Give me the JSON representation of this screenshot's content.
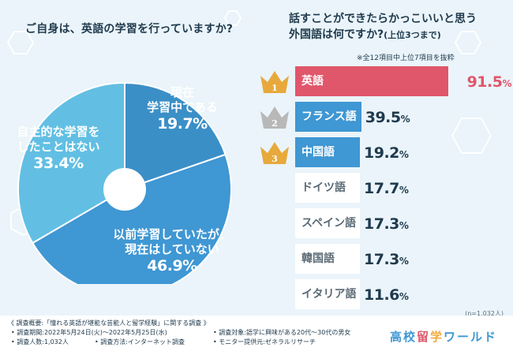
{
  "chart_data": [
    {
      "type": "pie",
      "title": "ご自身は、英語の学習を行っていますか?",
      "slices": [
        {
          "label": "現在学習中である",
          "label_lines": [
            "現在",
            "学習中である"
          ],
          "value": 19.7,
          "pct_text": "19.7%",
          "color": "#3b8fc7"
        },
        {
          "label": "以前学習していたが、現在はしていない",
          "label_lines": [
            "以前学習していたが、",
            "現在はしていない"
          ],
          "value": 46.9,
          "pct_text": "46.9%",
          "color": "#3f97d3"
        },
        {
          "label": "自主的な学習をしたことはない",
          "label_lines": [
            "自主的な学習を",
            "したことはない"
          ],
          "value": 33.4,
          "pct_text": "33.4%",
          "color": "#62bfe3"
        }
      ]
    },
    {
      "type": "bar",
      "title": "話すことができたらかっこいいと思う外国語は何ですか?",
      "title_lines": [
        "話すことができたらかっこいいと思う",
        "外国語は何ですか?"
      ],
      "subtitle": "(上位3つまで)",
      "note": "※全12項目中上位7項目を抜粋",
      "categories": [
        "英語",
        "フランス語",
        "中国語",
        "ドイツ語",
        "スペイン語",
        "韓国語",
        "イタリア語"
      ],
      "values": [
        91.5,
        39.5,
        19.2,
        17.7,
        17.3,
        17.3,
        11.6
      ],
      "value_texts": [
        "91.5",
        "39.5",
        "19.2",
        "17.7",
        "17.3",
        "17.3",
        "11.6"
      ],
      "unit": "%",
      "ranks": [
        "1",
        "2",
        "3"
      ],
      "colors": {
        "first": "#e0566a",
        "top": "#3f97d3",
        "rest": "#ffffff"
      },
      "sample": "(n=1,032人)"
    }
  ],
  "footer": {
    "summary": "《 調査概要:「憧れる英語が堪能な芸能人と留学経験」に関する調査 》",
    "period": "• 調査期間:2022年5月24日(火)〜2022年5月25日(水)",
    "count": "• 調査人数:1,032人",
    "method": "• 調査方法:インターネット調査",
    "target": "• 調査対象:語学に興味がある20代〜30代の男女",
    "provider": "• モニター提供元:ゼネラルリサーチ"
  },
  "logo": {
    "text": "高校留学ワールド",
    "colors": [
      "#3f97d3",
      "#e0566a",
      "#f2a93b",
      "#3f97d3"
    ]
  }
}
